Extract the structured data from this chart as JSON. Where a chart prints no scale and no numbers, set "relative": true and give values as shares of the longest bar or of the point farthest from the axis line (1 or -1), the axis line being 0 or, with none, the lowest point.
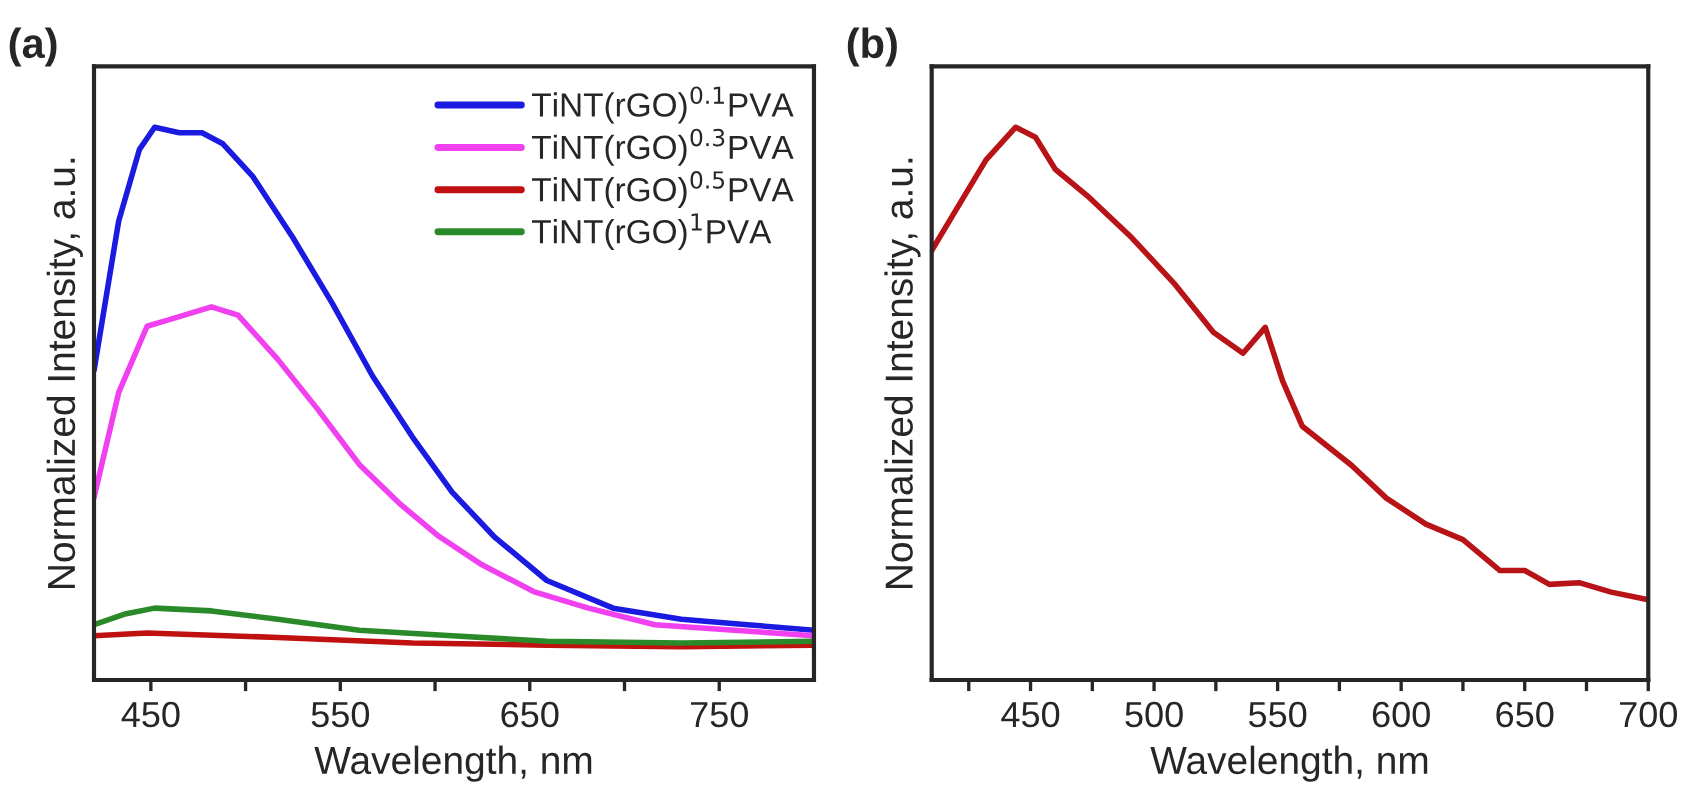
{
  "chart_data": [
    {
      "type": "line",
      "relative": true,
      "xlabel": "Wavelength, nm",
      "ylabel": "Normalized Intensity, a.u.",
      "annotations": [
        "(a)"
      ],
      "xlim": [
        420,
        800
      ],
      "xticks": [
        450,
        {
          "value": 500,
          "label": null
        },
        550,
        {
          "value": 600,
          "label": null
        },
        650,
        {
          "value": 700,
          "label": null
        },
        750
      ],
      "legend": "top right",
      "grid": false,
      "series": [
        {
          "name": "TiNT(rGO)$^{0.1}$PVA",
          "color": "#1a1ae0",
          "x": [
            420,
            433,
            444,
            452,
            465,
            477,
            488,
            504,
            525,
            546,
            567,
            588,
            609,
            631,
            659,
            694,
            730,
            765,
            800
          ],
          "values": [
            0.56,
            0.83,
            0.96,
            1.0,
            0.99,
            0.99,
            0.97,
            0.91,
            0.8,
            0.68,
            0.55,
            0.44,
            0.34,
            0.26,
            0.18,
            0.13,
            0.11,
            0.1,
            0.09
          ]
        },
        {
          "name": "TiNT(rGO)$^{0.3}$PVA",
          "color": "#f040f0",
          "x": [
            420,
            433,
            448,
            458,
            482,
            496,
            517,
            538,
            560,
            581,
            602,
            624,
            652,
            681,
            716,
            758,
            800
          ],
          "values": [
            0.33,
            0.52,
            0.64,
            0.65,
            0.675,
            0.66,
            0.58,
            0.49,
            0.39,
            0.32,
            0.26,
            0.21,
            0.16,
            0.13,
            0.1,
            0.09,
            0.08
          ]
        },
        {
          "name": "TiNT(rGO)$^{0.5}$PVA",
          "color": "#c01010",
          "x": [
            420,
            448,
            517,
            588,
            659,
            730,
            800
          ],
          "values": [
            0.08,
            0.085,
            0.077,
            0.067,
            0.063,
            0.06,
            0.063
          ]
        },
        {
          "name": "TiNT(rGO)$^{1}$PVA",
          "color": "#2a8a2a",
          "x": [
            420,
            437,
            452,
            482,
            517,
            560,
            609,
            659,
            730,
            800
          ],
          "values": [
            0.1,
            0.12,
            0.13,
            0.125,
            0.11,
            0.09,
            0.08,
            0.07,
            0.067,
            0.07
          ]
        }
      ]
    },
    {
      "type": "line",
      "relative": true,
      "xlabel": "Wavelength, nm",
      "ylabel": "Normalized Intensity, a.u.",
      "annotations": [
        "(b)"
      ],
      "xlim": [
        410,
        700
      ],
      "xticks": [
        {
          "value": 425,
          "label": null
        },
        450,
        {
          "value": 475,
          "label": null
        },
        500,
        {
          "value": 525,
          "label": null
        },
        550,
        {
          "value": 575,
          "label": null
        },
        600,
        {
          "value": 625,
          "label": null
        },
        650,
        {
          "value": 675,
          "label": null
        },
        700
      ],
      "grid": false,
      "series": [
        {
          "color": "#b81418",
          "x": [
            410,
            421,
            432,
            444,
            452,
            460,
            473,
            491,
            508,
            524,
            536,
            545,
            552,
            560,
            580,
            594,
            610,
            625,
            640,
            650,
            660,
            672,
            685,
            700
          ],
          "values": [
            0.777,
            0.859,
            0.941,
            1.0,
            0.982,
            0.924,
            0.876,
            0.8,
            0.718,
            0.629,
            0.591,
            0.638,
            0.541,
            0.459,
            0.388,
            0.329,
            0.282,
            0.254,
            0.198,
            0.198,
            0.173,
            0.176,
            0.159,
            0.145
          ]
        }
      ]
    }
  ]
}
